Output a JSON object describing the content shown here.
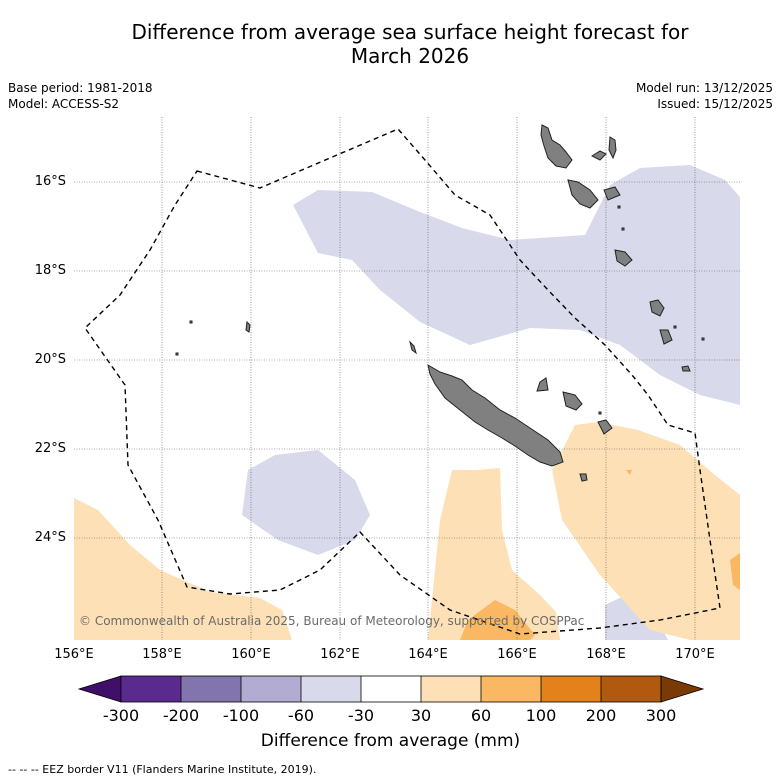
{
  "title_line1": "Difference from average sea surface height forecast for",
  "title_line2": "March 2026",
  "base_period": "Base period: 1981-2018",
  "model": "Model: ACCESS-S2",
  "model_run": "Model run: 13/12/2025",
  "issued": "Issued: 15/12/2025",
  "credit": "© Commonwealth of Australia 2025, Bureau of Meteorology, supported by COSPPac",
  "lat_labels": [
    "16°S",
    "18°S",
    "20°S",
    "22°S",
    "24°S"
  ],
  "lon_labels": [
    "156°E",
    "158°E",
    "160°E",
    "162°E",
    "164°E",
    "166°E",
    "168°E",
    "170°E"
  ],
  "colorbar": {
    "ticks": [
      "-300",
      "-200",
      "-100",
      "-60",
      "-30",
      "30",
      "60",
      "100",
      "200",
      "300"
    ],
    "colors": [
      "#3f0f6a",
      "#5a2a8e",
      "#8275ae",
      "#b2acd2",
      "#d8d9ea",
      "#ffffff",
      "#fde0b6",
      "#fbb862",
      "#e3821a",
      "#b15a0f",
      "#7a3a05"
    ],
    "title": "Difference from average (mm)"
  },
  "footnote": "--  --  -- EEZ border V11 (Flanders Marine Institute, 2019).",
  "legend_colors": {
    "neg_light": "#d8d9ea",
    "pos_light": "#fde0b6",
    "pos_mid": "#fbb862",
    "land": "#808080"
  }
}
